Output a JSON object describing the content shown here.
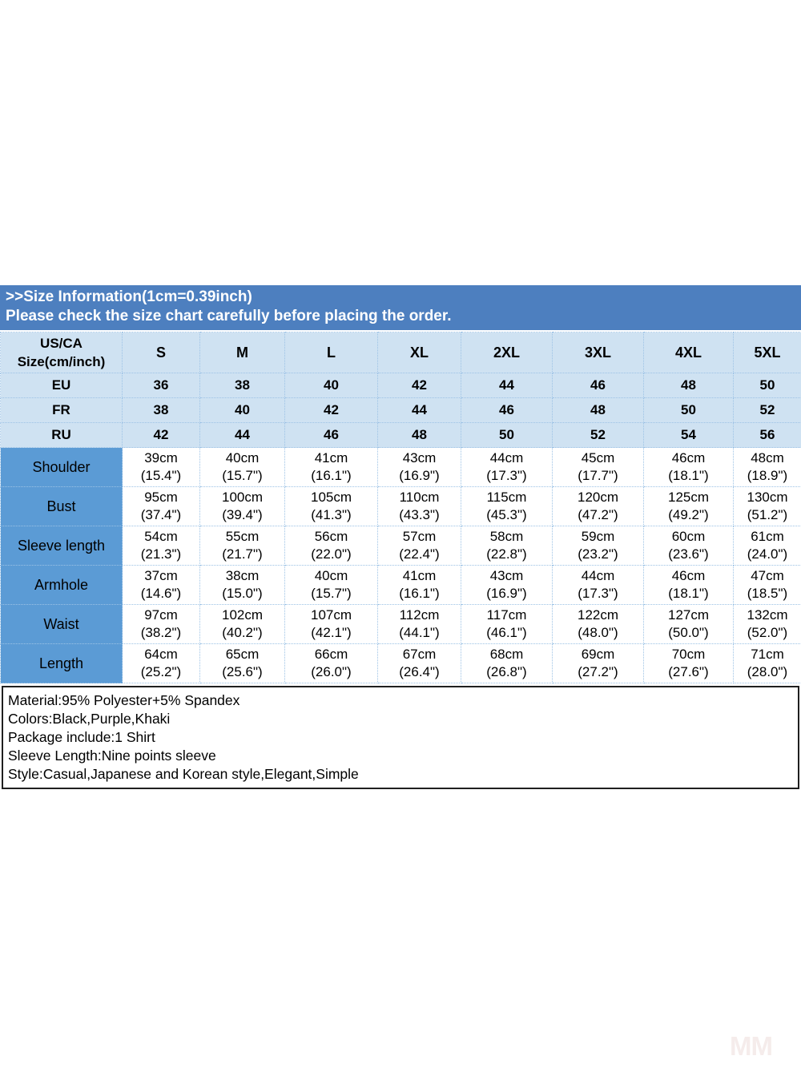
{
  "banner": {
    "line1": ">>Size Information(1cm=0.39inch)",
    "line2": "Please check the size chart carefully before placing the order."
  },
  "table": {
    "corner": {
      "line1": "US/CA",
      "line2": "Size(cm/inch)"
    },
    "sizes": [
      "S",
      "M",
      "L",
      "XL",
      "2XL",
      "3XL",
      "4XL",
      "5XL"
    ],
    "regions": [
      {
        "label": "EU",
        "values": [
          "36",
          "38",
          "40",
          "42",
          "44",
          "46",
          "48",
          "50"
        ]
      },
      {
        "label": "FR",
        "values": [
          "38",
          "40",
          "42",
          "44",
          "46",
          "48",
          "50",
          "52"
        ]
      },
      {
        "label": "RU",
        "values": [
          "42",
          "44",
          "46",
          "48",
          "50",
          "52",
          "54",
          "56"
        ]
      }
    ],
    "measurements": [
      {
        "label": "Shoulder",
        "cm": [
          "39cm",
          "40cm",
          "41cm",
          "43cm",
          "44cm",
          "45cm",
          "46cm",
          "48cm"
        ],
        "inch": [
          "(15.4\")",
          "(15.7\")",
          "(16.1\")",
          "(16.9\")",
          "(17.3\")",
          "(17.7\")",
          "(18.1\")",
          "(18.9\")"
        ]
      },
      {
        "label": "Bust",
        "cm": [
          "95cm",
          "100cm",
          "105cm",
          "110cm",
          "115cm",
          "120cm",
          "125cm",
          "130cm"
        ],
        "inch": [
          "(37.4\")",
          "(39.4\")",
          "(41.3\")",
          "(43.3\")",
          "(45.3\")",
          "(47.2\")",
          "(49.2\")",
          "(51.2\")"
        ]
      },
      {
        "label": "Sleeve length",
        "cm": [
          "54cm",
          "55cm",
          "56cm",
          "57cm",
          "58cm",
          "59cm",
          "60cm",
          "61cm"
        ],
        "inch": [
          "(21.3\")",
          "(21.7\")",
          "(22.0\")",
          "(22.4\")",
          "(22.8\")",
          "(23.2\")",
          "(23.6\")",
          "(24.0\")"
        ]
      },
      {
        "label": "Armhole",
        "cm": [
          "37cm",
          "38cm",
          "40cm",
          "41cm",
          "43cm",
          "44cm",
          "46cm",
          "47cm"
        ],
        "inch": [
          "(14.6\")",
          "(15.0\")",
          "(15.7\")",
          "(16.1\")",
          "(16.9\")",
          "(17.3\")",
          "(18.1\")",
          "(18.5\")"
        ]
      },
      {
        "label": "Waist",
        "cm": [
          "97cm",
          "102cm",
          "107cm",
          "112cm",
          "117cm",
          "122cm",
          "127cm",
          "132cm"
        ],
        "inch": [
          "(38.2\")",
          "(40.2\")",
          "(42.1\")",
          "(44.1\")",
          "(46.1\")",
          "(48.0\")",
          "(50.0\")",
          "(52.0\")"
        ]
      },
      {
        "label": "Length",
        "cm": [
          "64cm",
          "65cm",
          "66cm",
          "67cm",
          "68cm",
          "69cm",
          "70cm",
          "71cm"
        ],
        "inch": [
          "(25.2\")",
          "(25.6\")",
          "(26.0\")",
          "(26.4\")",
          "(26.8\")",
          "(27.2\")",
          "(27.6\")",
          "(28.0\")"
        ]
      }
    ]
  },
  "details": {
    "lines": [
      "Material:95% Polyester+5% Spandex",
      "Colors:Black,Purple,Khaki",
      "Package include:1 Shirt",
      "Sleeve Length:Nine points sleeve",
      "Style:Casual,Japanese and Korean style,Elegant,Simple"
    ]
  },
  "watermark": {
    "text": "MM"
  },
  "colors": {
    "banner_blue": "#4d7fbf",
    "header_light_blue": "#cfe2f2",
    "label_column_blue": "#5b9bd5",
    "cell_border_blue": "#9cc2e5",
    "label_text_navy": "#1f3864",
    "details_border": "#1f1f1f",
    "watermark_pink": "#f5eceb"
  }
}
